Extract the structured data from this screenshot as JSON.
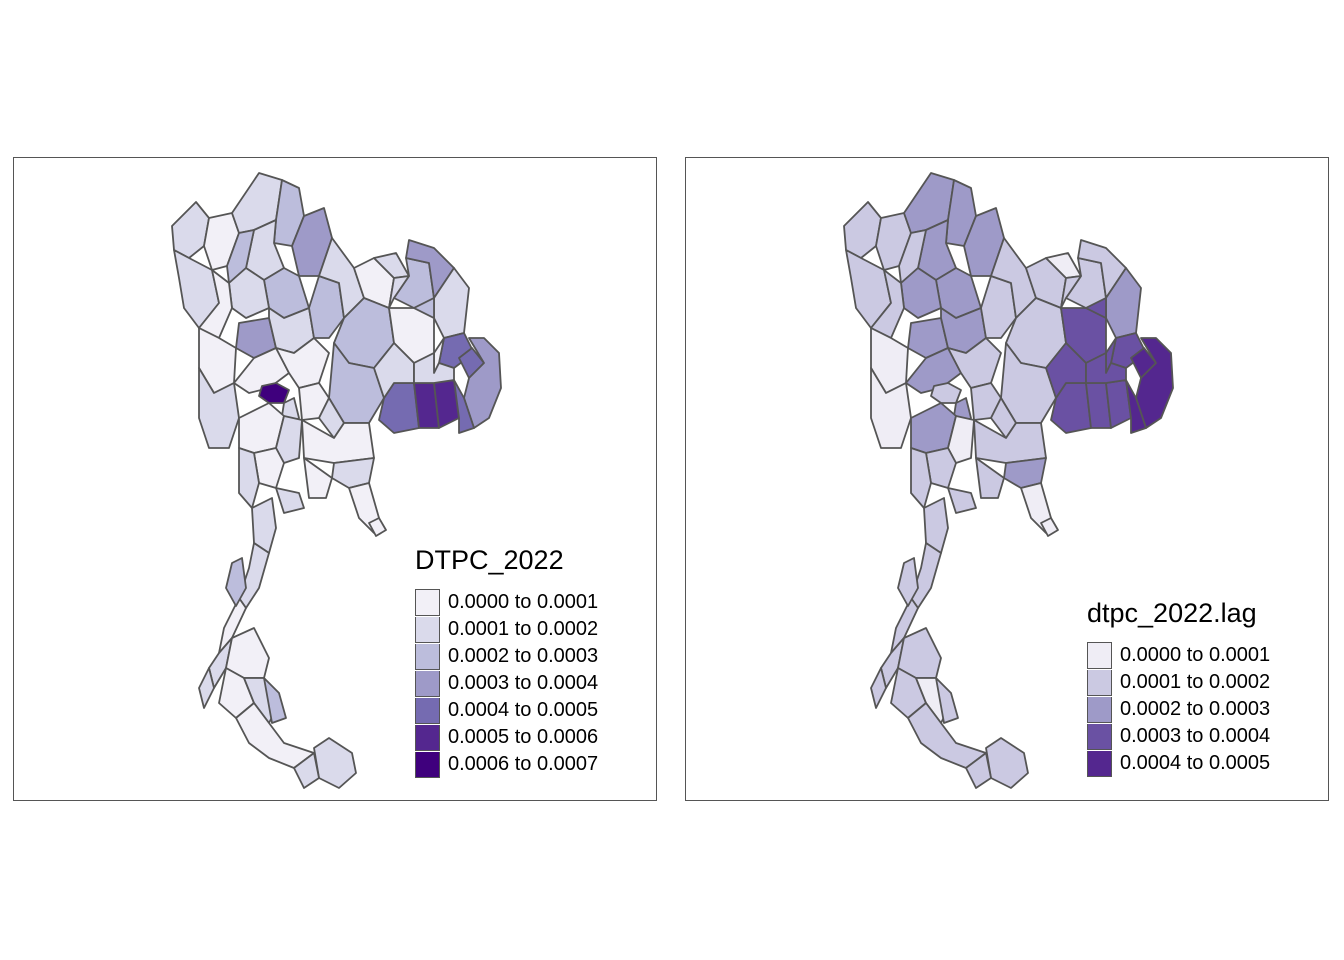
{
  "panels": [
    {
      "legend": {
        "title": "DTPC_2022",
        "items": [
          {
            "label": "0.0000 to 0.0001",
            "color": "#f2f0f7"
          },
          {
            "label": "0.0001 to 0.0002",
            "color": "#dadaeb"
          },
          {
            "label": "0.0002 to 0.0003",
            "color": "#bcbddc"
          },
          {
            "label": "0.0003 to 0.0004",
            "color": "#9e9ac8"
          },
          {
            "label": "0.0004 to 0.0005",
            "color": "#756bb1"
          },
          {
            "label": "0.0005 to 0.0006",
            "color": "#54278f"
          },
          {
            "label": "0.0006 to 0.0007",
            "color": "#3f007d"
          }
        ]
      }
    },
    {
      "legend": {
        "title": "dtpc_2022.lag",
        "items": [
          {
            "label": "0.0000 to 0.0001",
            "color": "#efedf5"
          },
          {
            "label": "0.0001 to 0.0002",
            "color": "#cbc9e2"
          },
          {
            "label": "0.0002 to 0.0003",
            "color": "#9e9ac8"
          },
          {
            "label": "0.0003 to 0.0004",
            "color": "#6a51a3"
          },
          {
            "label": "0.0004 to 0.0005",
            "color": "#54278f"
          }
        ]
      }
    }
  ],
  "border_color": "#555555"
}
